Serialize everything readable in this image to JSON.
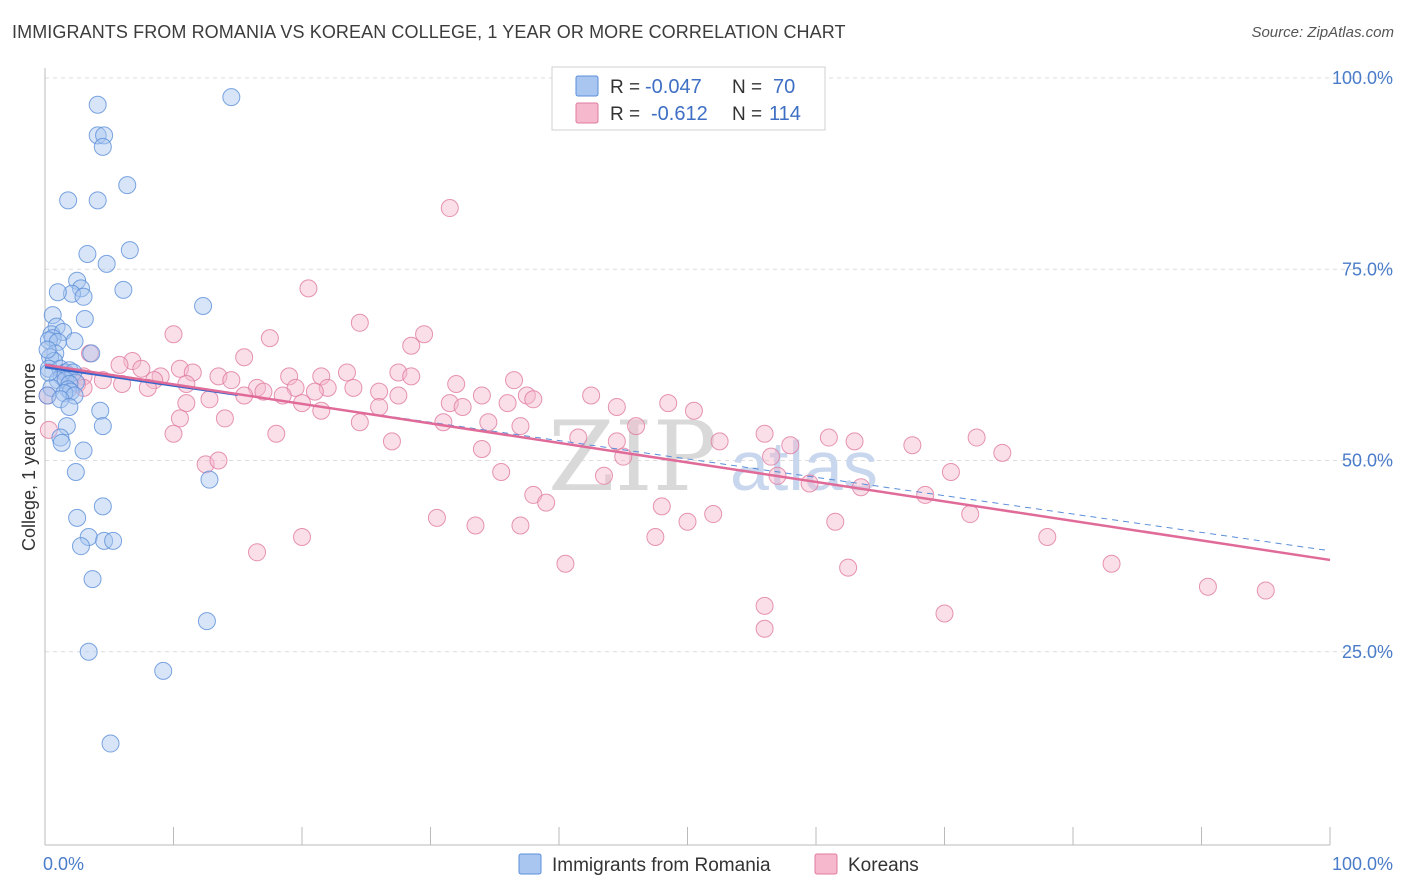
{
  "title": "IMMIGRANTS FROM ROMANIA VS KOREAN COLLEGE, 1 YEAR OR MORE CORRELATION CHART",
  "source": "Source: ZipAtlas.com",
  "watermark": {
    "zip": "ZIP",
    "atlas": "atlas"
  },
  "legend": {
    "r_label": "R =",
    "n_label": "N =",
    "rows": [
      {
        "r": "-0.047",
        "n": "70",
        "color": "#a8c6f0",
        "stroke": "#5b8ed8"
      },
      {
        "r": "-0.612",
        "n": "114",
        "color": "#f5b8cc",
        "stroke": "#e07aa0"
      }
    ]
  },
  "bottom_legend": [
    "Immigrants from Romania",
    "Koreans"
  ],
  "chart_data": {
    "type": "scatter",
    "title": "IMMIGRANTS FROM ROMANIA VS KOREAN COLLEGE, 1 YEAR OR MORE CORRELATION CHART",
    "xlabel": "",
    "ylabel": "College, 1 year or more",
    "xlim": [
      0,
      100
    ],
    "ylim": [
      0,
      104
    ],
    "x_tick_labels": [
      "0.0%",
      "100.0%"
    ],
    "y_ticks": [
      25,
      50,
      75,
      100
    ],
    "y_tick_labels": [
      "25.0%",
      "50.0%",
      "75.0%",
      "100.0%"
    ],
    "grid": true,
    "legend_position": "top-center",
    "series": [
      {
        "name": "Immigrants from Romania",
        "color": "#a8c6f0",
        "stroke": "#5b8ed8",
        "trend": {
          "x0": 0,
          "y0": 62.2,
          "x1": 15,
          "y1": 58.6
        },
        "points": [
          [
            4.1,
            96.5
          ],
          [
            14.5,
            97.5
          ],
          [
            4.1,
            92.5
          ],
          [
            4.6,
            92.5
          ],
          [
            4.5,
            91
          ],
          [
            6.4,
            86
          ],
          [
            1.8,
            84
          ],
          [
            4.1,
            84
          ],
          [
            6.6,
            77.5
          ],
          [
            3.3,
            77
          ],
          [
            4.8,
            75.7
          ],
          [
            2.5,
            73.5
          ],
          [
            2.8,
            72.5
          ],
          [
            6.1,
            72.3
          ],
          [
            2.1,
            71.8
          ],
          [
            3.0,
            71.4
          ],
          [
            1.0,
            72.0
          ],
          [
            12.3,
            70.2
          ],
          [
            0.6,
            69.0
          ],
          [
            3.1,
            68.5
          ],
          [
            0.9,
            67.5
          ],
          [
            0.5,
            66.5
          ],
          [
            1.4,
            66.8
          ],
          [
            0.6,
            66.0
          ],
          [
            0.3,
            65.7
          ],
          [
            2.3,
            65.6
          ],
          [
            1.0,
            65.5
          ],
          [
            0.8,
            64.0
          ],
          [
            0.4,
            63.5
          ],
          [
            3.6,
            64.0
          ],
          [
            0.7,
            63.0
          ],
          [
            0.3,
            62.0
          ],
          [
            1.2,
            62.0
          ],
          [
            1.6,
            61.5
          ],
          [
            1.9,
            61.8
          ],
          [
            1.3,
            61.0
          ],
          [
            2.2,
            61.5
          ],
          [
            1.0,
            60.5
          ],
          [
            1.6,
            60.5
          ],
          [
            2.4,
            60.2
          ],
          [
            1.9,
            60.0
          ],
          [
            0.5,
            59.5
          ],
          [
            1.8,
            59.3
          ],
          [
            2.0,
            59.0
          ],
          [
            1.5,
            58.8
          ],
          [
            2.3,
            58.5
          ],
          [
            0.2,
            58.5
          ],
          [
            1.2,
            58.0
          ],
          [
            1.9,
            57.0
          ],
          [
            4.3,
            56.5
          ],
          [
            1.7,
            54.5
          ],
          [
            4.5,
            54.5
          ],
          [
            1.2,
            53.0
          ],
          [
            1.3,
            52.3
          ],
          [
            3.0,
            51.3
          ],
          [
            12.8,
            47.5
          ],
          [
            2.4,
            48.5
          ],
          [
            4.5,
            44.0
          ],
          [
            2.5,
            42.5
          ],
          [
            3.4,
            40.0
          ],
          [
            4.6,
            39.5
          ],
          [
            5.3,
            39.5
          ],
          [
            2.8,
            38.8
          ],
          [
            3.7,
            34.5
          ],
          [
            12.6,
            29.0
          ],
          [
            3.4,
            25.0
          ],
          [
            9.2,
            22.5
          ],
          [
            5.1,
            13.0
          ],
          [
            0.3,
            61.5
          ],
          [
            0.2,
            64.5
          ]
        ]
      },
      {
        "name": "Koreans",
        "color": "#f5b8cc",
        "stroke": "#e07aa0",
        "trend": {
          "x0": 0,
          "y0": 62.5,
          "x1": 100,
          "y1": 37.0
        },
        "points": [
          [
            31.5,
            83.0
          ],
          [
            20.5,
            72.5
          ],
          [
            24.5,
            68.0
          ],
          [
            29.5,
            66.5
          ],
          [
            10.0,
            66.5
          ],
          [
            17.5,
            66.0
          ],
          [
            28.5,
            65.0
          ],
          [
            3.5,
            64.0
          ],
          [
            15.5,
            63.5
          ],
          [
            6.8,
            63.0
          ],
          [
            5.8,
            62.5
          ],
          [
            10.5,
            62.0
          ],
          [
            7.5,
            62.0
          ],
          [
            11.5,
            61.5
          ],
          [
            9.0,
            61.0
          ],
          [
            19.0,
            61.0
          ],
          [
            23.5,
            61.5
          ],
          [
            27.5,
            61.5
          ],
          [
            1.5,
            61.5
          ],
          [
            3.0,
            61.0
          ],
          [
            8.5,
            60.5
          ],
          [
            13.5,
            61.0
          ],
          [
            21.5,
            61.0
          ],
          [
            4.5,
            60.5
          ],
          [
            14.5,
            60.5
          ],
          [
            28.5,
            61.0
          ],
          [
            36.5,
            60.5
          ],
          [
            6.0,
            60.0
          ],
          [
            2.5,
            60.0
          ],
          [
            11.0,
            60.0
          ],
          [
            16.5,
            59.5
          ],
          [
            19.5,
            59.5
          ],
          [
            22.0,
            59.5
          ],
          [
            24.0,
            59.5
          ],
          [
            32.0,
            60.0
          ],
          [
            3.0,
            59.5
          ],
          [
            8.0,
            59.5
          ],
          [
            17.0,
            59.0
          ],
          [
            21.0,
            59.0
          ],
          [
            26.0,
            59.0
          ],
          [
            15.5,
            58.5
          ],
          [
            18.5,
            58.5
          ],
          [
            27.5,
            58.5
          ],
          [
            34.0,
            58.5
          ],
          [
            37.5,
            58.5
          ],
          [
            12.8,
            58.0
          ],
          [
            42.5,
            58.5
          ],
          [
            38.0,
            58.0
          ],
          [
            20.0,
            57.5
          ],
          [
            31.5,
            57.5
          ],
          [
            11.0,
            57.5
          ],
          [
            36.0,
            57.5
          ],
          [
            26.0,
            57.0
          ],
          [
            44.5,
            57.0
          ],
          [
            48.5,
            57.5
          ],
          [
            50.5,
            56.5
          ],
          [
            21.5,
            56.5
          ],
          [
            32.5,
            57.0
          ],
          [
            10.5,
            55.5
          ],
          [
            14.0,
            55.5
          ],
          [
            34.5,
            55.0
          ],
          [
            24.5,
            55.0
          ],
          [
            31.0,
            55.0
          ],
          [
            37.0,
            54.5
          ],
          [
            46.0,
            54.5
          ],
          [
            56.0,
            53.5
          ],
          [
            61.0,
            53.0
          ],
          [
            72.5,
            53.0
          ],
          [
            10.0,
            53.5
          ],
          [
            18.0,
            53.5
          ],
          [
            27.0,
            52.5
          ],
          [
            41.5,
            53.0
          ],
          [
            44.5,
            52.5
          ],
          [
            52.5,
            52.5
          ],
          [
            58.0,
            52.0
          ],
          [
            63.0,
            52.5
          ],
          [
            67.5,
            52.0
          ],
          [
            56.5,
            50.5
          ],
          [
            45.0,
            50.5
          ],
          [
            34.0,
            51.5
          ],
          [
            74.5,
            51.0
          ],
          [
            70.5,
            48.5
          ],
          [
            35.5,
            48.5
          ],
          [
            43.5,
            48.0
          ],
          [
            57.0,
            48.0
          ],
          [
            59.5,
            47.0
          ],
          [
            63.5,
            46.5
          ],
          [
            38.0,
            45.5
          ],
          [
            68.5,
            45.5
          ],
          [
            30.5,
            42.5
          ],
          [
            39.0,
            44.5
          ],
          [
            48.0,
            44.0
          ],
          [
            52.0,
            43.0
          ],
          [
            61.5,
            42.0
          ],
          [
            72.0,
            43.0
          ],
          [
            50.0,
            42.0
          ],
          [
            37.0,
            41.5
          ],
          [
            33.5,
            41.5
          ],
          [
            47.5,
            40.0
          ],
          [
            78.0,
            40.0
          ],
          [
            20.0,
            40.0
          ],
          [
            16.5,
            38.0
          ],
          [
            40.5,
            36.5
          ],
          [
            62.5,
            36.0
          ],
          [
            83.0,
            36.5
          ],
          [
            95.0,
            33.0
          ],
          [
            90.5,
            33.5
          ],
          [
            56.0,
            31.0
          ],
          [
            70.0,
            30.0
          ],
          [
            56.0,
            28.0
          ],
          [
            12.5,
            49.5
          ],
          [
            13.5,
            50.0
          ],
          [
            0.3,
            54.0
          ],
          [
            0.2,
            58.5
          ]
        ]
      }
    ]
  }
}
